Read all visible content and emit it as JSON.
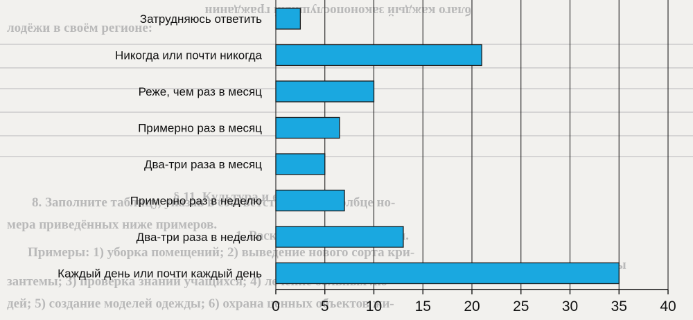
{
  "chart_data": {
    "type": "bar",
    "orientation": "horizontal",
    "title": "",
    "xlabel": "",
    "ylabel": "",
    "categories": [
      "Затрудняюсь ответить",
      "Никогда или почти никогда",
      "Реже, чем раз в месяц",
      "Примерно раз в месяц",
      "Два-три раза в месяц",
      "Примерно раз в неделю",
      "Два-три раза в неделю",
      "Каждый день или почти каждый день"
    ],
    "values": [
      2.5,
      21,
      10,
      6.5,
      5,
      7,
      13,
      35
    ],
    "xlim": [
      0,
      40
    ],
    "xticks": [
      "0",
      "5",
      "10",
      "15",
      "20",
      "25",
      "30",
      "35",
      "40"
    ],
    "grid": "vertical",
    "bar_color": "#1aa8e0",
    "legend": "none"
  },
  "background_text": [
    "благо каждый законопослушный гражданин",
    "лодёжи в своём регионе:",
    "§ 11. Культура и ее формы",
    "8. Заполните таблицу, указав в соответствующем столбце но-",
    "мера приведённых ниже примеров.",
    "1. Раскройте смысл понятия.",
    "Примеры: 1) уборка помещений; 2) выведение нового сорта кри-",
    "культуры",
    "зантемы; 3) проверка знаний учащихся; 4) лечение больных лю-",
    "дей; 5) создание моделей одежды; 6) охрана ценных объектов жи-"
  ]
}
